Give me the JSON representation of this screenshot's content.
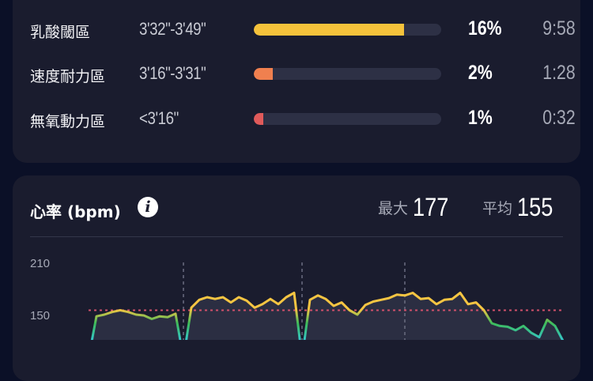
{
  "zones": [
    {
      "name": "乳酸閾區",
      "pace": "3'32\"-3'49\"",
      "percent": "16%",
      "value": 16,
      "time": "9:58",
      "color": "#f5c23b"
    },
    {
      "name": "速度耐力區",
      "pace": "3'16\"-3'31\"",
      "percent": "2%",
      "value": 2,
      "time": "1:28",
      "color": "#f0804f"
    },
    {
      "name": "無氧動力區",
      "pace": "<3'16\"",
      "percent": "1%",
      "value": 1,
      "time": "0:32",
      "color": "#e05a5a"
    }
  ],
  "heart_rate": {
    "title": "心率 (bpm)",
    "info_icon": "info-icon",
    "max_label": "最大",
    "max_value": "177",
    "avg_label": "平均",
    "avg_value": "155"
  },
  "chart_data": {
    "type": "line",
    "ylabel": "",
    "y_ticks": [
      "210",
      "150"
    ],
    "reference_line": 155,
    "lap_markers": [
      12,
      27,
      40
    ],
    "values": [
      100,
      148,
      150,
      153,
      155,
      153,
      150,
      149,
      145,
      148,
      147,
      151,
      100,
      158,
      167,
      170,
      168,
      170,
      164,
      170,
      166,
      158,
      162,
      168,
      162,
      170,
      175,
      100,
      167,
      172,
      168,
      160,
      164,
      155,
      150,
      161,
      165,
      167,
      169,
      173,
      172,
      175,
      168,
      169,
      162,
      167,
      168,
      175,
      162,
      164,
      155,
      140,
      137,
      136,
      132,
      137,
      129,
      124,
      144,
      137,
      120
    ],
    "colors": {
      "high": "#f5c542",
      "mid": "#3dbb5a",
      "low": "#35c6c9",
      "reference": "#d0506a",
      "fill": "#2b2e42"
    }
  }
}
